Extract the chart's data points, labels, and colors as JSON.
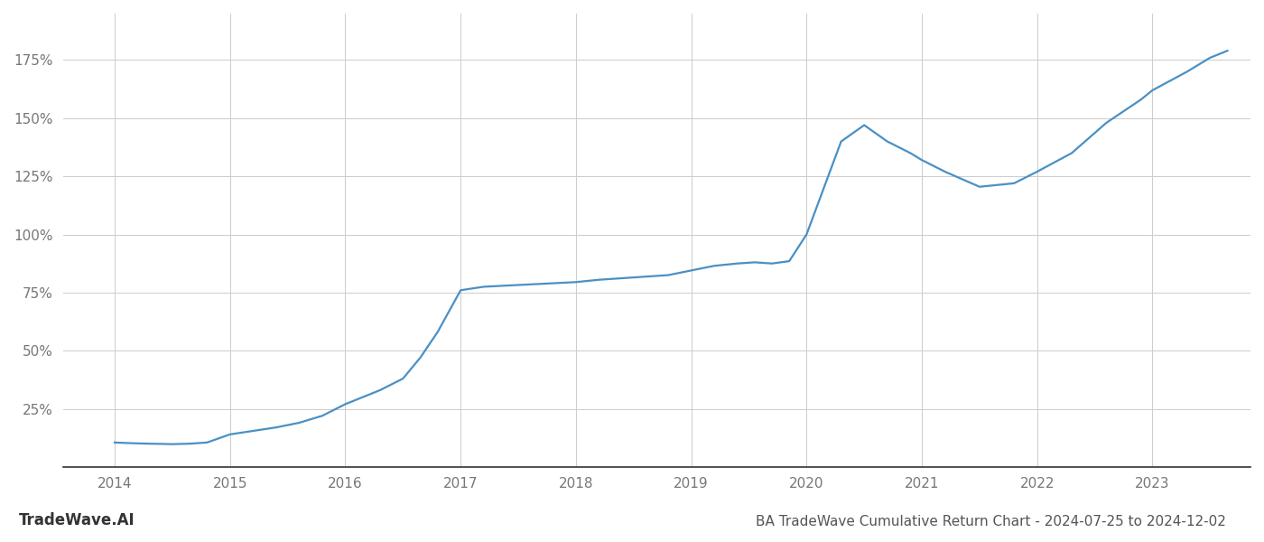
{
  "title": "BA TradeWave Cumulative Return Chart - 2024-07-25 to 2024-12-02",
  "watermark": "TradeWave.AI",
  "line_color": "#4a90c4",
  "background_color": "#ffffff",
  "grid_color": "#cccccc",
  "x_values": [
    2014.0,
    2014.15,
    2014.3,
    2014.5,
    2014.65,
    2014.8,
    2015.0,
    2015.2,
    2015.4,
    2015.6,
    2015.8,
    2016.0,
    2016.15,
    2016.3,
    2016.5,
    2016.65,
    2016.8,
    2017.0,
    2017.2,
    2017.4,
    2017.6,
    2017.8,
    2018.0,
    2018.2,
    2018.5,
    2018.8,
    2019.0,
    2019.2,
    2019.4,
    2019.55,
    2019.7,
    2019.85,
    2020.0,
    2020.15,
    2020.3,
    2020.5,
    2020.7,
    2020.9,
    2021.0,
    2021.2,
    2021.5,
    2021.8,
    2022.0,
    2022.3,
    2022.6,
    2022.9,
    2023.0,
    2023.3,
    2023.5,
    2023.65
  ],
  "y_values": [
    10.5,
    10.2,
    10.0,
    9.8,
    10.0,
    10.5,
    14.0,
    15.5,
    17.0,
    19.0,
    22.0,
    27.0,
    30.0,
    33.0,
    38.0,
    47.0,
    58.0,
    76.0,
    77.5,
    78.0,
    78.5,
    79.0,
    79.5,
    80.5,
    81.5,
    82.5,
    84.5,
    86.5,
    87.5,
    88.0,
    87.5,
    88.5,
    100.0,
    120.0,
    140.0,
    147.0,
    140.0,
    135.0,
    132.0,
    127.0,
    120.5,
    122.0,
    127.0,
    135.0,
    148.0,
    158.0,
    162.0,
    170.0,
    176.0,
    179.0
  ],
  "xlim": [
    2013.55,
    2023.85
  ],
  "ylim": [
    0,
    195
  ],
  "yticks": [
    25,
    50,
    75,
    100,
    125,
    150,
    175
  ],
  "xticks": [
    2014,
    2015,
    2016,
    2017,
    2018,
    2019,
    2020,
    2021,
    2022,
    2023
  ],
  "line_width": 1.6,
  "title_fontsize": 11,
  "tick_fontsize": 11,
  "watermark_fontsize": 12
}
